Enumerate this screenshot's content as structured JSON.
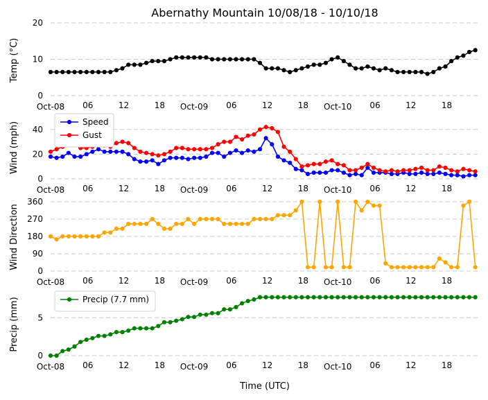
{
  "chart_data": {
    "type": "line",
    "title": "Abernathy Mountain 10/08/18 - 10/10/18",
    "xlabel": "Time (UTC)",
    "x_hours": [
      0,
      1,
      2,
      3,
      4,
      5,
      6,
      7,
      8,
      9,
      10,
      11,
      12,
      13,
      14,
      15,
      16,
      17,
      18,
      19,
      20,
      21,
      22,
      23,
      24,
      25,
      26,
      27,
      28,
      29,
      30,
      31,
      32,
      33,
      34,
      35,
      36,
      37,
      38,
      39,
      40,
      41,
      42,
      43,
      44,
      45,
      46,
      47,
      48,
      49,
      50,
      51,
      52,
      53,
      54,
      55,
      56,
      57,
      58,
      59,
      60,
      61,
      62,
      63,
      64,
      65,
      66,
      67,
      68,
      69,
      70,
      71
    ],
    "x_range": [
      0,
      71.5
    ],
    "x_tick_hours": [
      0,
      6,
      12,
      18,
      24,
      30,
      36,
      42,
      48,
      54,
      60,
      66
    ],
    "x_tick_labels": [
      "Oct-08",
      "06",
      "12",
      "18",
      "Oct-09",
      "06",
      "12",
      "18",
      "Oct-10",
      "06",
      "12",
      "18"
    ],
    "panels": [
      {
        "ylabel": "Temp (°C)",
        "ylim": [
          0,
          20
        ],
        "yticks": [
          0,
          10,
          20
        ],
        "grid": true,
        "legend": null,
        "series": [
          {
            "name": "Temp",
            "color": "#000000",
            "values": [
              6.5,
              6.5,
              6.5,
              6.5,
              6.5,
              6.5,
              6.5,
              6.5,
              6.5,
              6.5,
              6.5,
              7,
              7.5,
              8.5,
              8.5,
              8.5,
              9,
              9.5,
              9.5,
              9.5,
              10,
              10.5,
              10.5,
              10.5,
              10.5,
              10.5,
              10.5,
              10,
              10,
              10,
              10,
              10,
              10,
              10,
              10,
              9,
              7.5,
              7.5,
              7.5,
              7,
              6.5,
              7,
              7.5,
              8,
              8.5,
              8.5,
              9,
              10,
              10.5,
              9.5,
              8.5,
              7.5,
              7.5,
              8,
              7.5,
              7,
              7.5,
              7,
              6.5,
              6.5,
              6.5,
              6.5,
              6.5,
              6,
              6.5,
              7.5,
              8,
              9.5,
              10.5,
              11,
              12,
              12.5
            ]
          }
        ]
      },
      {
        "ylabel": "Wind (mph)",
        "ylim": [
          0,
          50
        ],
        "yticks": [
          0,
          20,
          40
        ],
        "grid": true,
        "legend": [
          "Speed",
          "Gust"
        ],
        "series": [
          {
            "name": "Speed",
            "color": "#0000ff",
            "values": [
              18,
              17,
              18,
              21,
              18,
              18,
              20,
              22,
              24,
              22,
              22,
              22,
              22,
              20,
              16,
              14,
              14,
              15,
              12,
              15,
              17,
              17,
              17,
              16,
              17,
              17,
              18,
              21,
              21,
              18,
              21,
              23,
              21,
              23,
              22,
              24,
              33,
              28,
              18,
              15,
              13,
              8,
              7,
              4,
              5,
              5,
              5,
              7,
              7,
              5,
              3,
              4,
              3,
              9,
              5,
              5,
              5,
              4,
              4,
              5,
              4,
              4,
              5,
              4,
              4,
              5,
              4,
              3,
              3,
              2,
              3,
              3
            ]
          },
          {
            "name": "Gust",
            "color": "#ff0000",
            "values": [
              22,
              24,
              26,
              29,
              29,
              25,
              25,
              26,
              27,
              27,
              26,
              29,
              30,
              29,
              25,
              22,
              21,
              20,
              19,
              20,
              22,
              25,
              25,
              24,
              24,
              24,
              24,
              25,
              28,
              30,
              30,
              34,
              32,
              35,
              36,
              40,
              42,
              41,
              38,
              26,
              22,
              16,
              10,
              11,
              12,
              12,
              14,
              15,
              12,
              11,
              7,
              7,
              9,
              12,
              9,
              7,
              6,
              7,
              6,
              7,
              7,
              8,
              9,
              7,
              7,
              10,
              9,
              7,
              6,
              8,
              7,
              6
            ]
          }
        ]
      },
      {
        "ylabel": "Wind Direction",
        "ylim": [
          0,
          360
        ],
        "yticks": [
          0,
          90,
          180,
          270,
          360
        ],
        "grid": true,
        "legend": null,
        "series": [
          {
            "name": "Direction",
            "color": "#ffa500",
            "linestyle": "solid",
            "values": [
              180,
              165,
              180,
              180,
              180,
              180,
              180,
              180,
              180,
              200,
              200,
              220,
              220,
              245,
              245,
              245,
              245,
              270,
              245,
              220,
              220,
              245,
              245,
              270,
              245,
              270,
              270,
              270,
              270,
              245,
              245,
              245,
              245,
              245,
              270,
              270,
              270,
              270,
              290,
              290,
              290,
              315,
              360,
              20,
              20,
              360,
              20,
              20,
              360,
              20,
              20,
              360,
              315,
              360,
              340,
              340,
              40,
              20,
              20,
              20,
              20,
              20,
              20,
              20,
              20,
              65,
              45,
              20,
              20,
              340,
              360,
              20
            ]
          }
        ]
      },
      {
        "ylabel": "Precip (mm)",
        "ylim": [
          0,
          8.5
        ],
        "yticks": [
          0,
          5
        ],
        "grid": true,
        "legend": [
          "Precip (7.7 mm)"
        ],
        "series": [
          {
            "name": "Precip (7.7 mm)",
            "color": "#008000",
            "values": [
              0,
              0,
              0.6,
              0.8,
              1.2,
              1.8,
              2.1,
              2.3,
              2.6,
              2.6,
              2.8,
              3.1,
              3.1,
              3.3,
              3.6,
              3.6,
              3.6,
              3.6,
              3.9,
              4.4,
              4.4,
              4.6,
              4.8,
              5.1,
              5.1,
              5.4,
              5.4,
              5.6,
              5.6,
              6.1,
              6.1,
              6.4,
              6.9,
              7.2,
              7.4,
              7.7,
              7.7,
              7.7,
              7.7,
              7.7,
              7.7,
              7.7,
              7.7,
              7.7,
              7.7,
              7.7,
              7.7,
              7.7,
              7.7,
              7.7,
              7.7,
              7.7,
              7.7,
              7.7,
              7.7,
              7.7,
              7.7,
              7.7,
              7.7,
              7.7,
              7.7,
              7.7,
              7.7,
              7.7,
              7.7,
              7.7,
              7.7,
              7.7,
              7.7,
              7.7,
              7.7,
              7.7
            ]
          }
        ]
      }
    ]
  }
}
